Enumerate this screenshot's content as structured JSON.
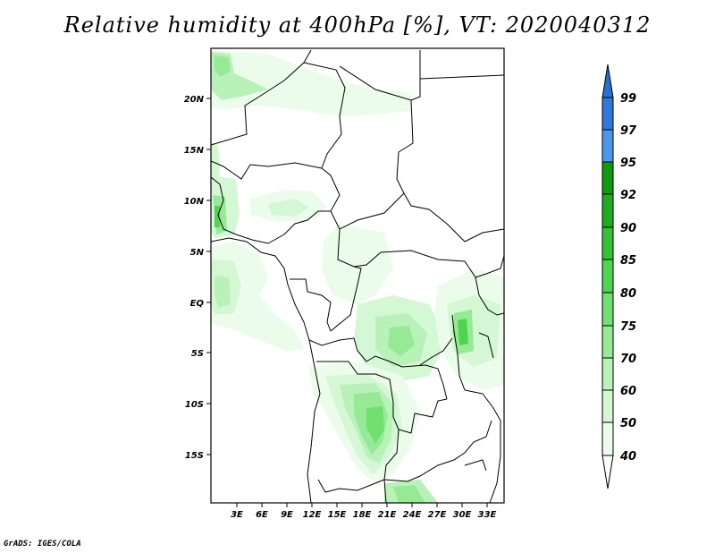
{
  "title": "Relative humidity at 400hPa [%], VT: 2020040312",
  "credit": "GrADS: IGES/COLA",
  "lat_labels": [
    "20N",
    "15N",
    "10N",
    "5N",
    "EQ",
    "5S",
    "10S",
    "15S"
  ],
  "lon_labels": [
    "3E",
    "6E",
    "9E",
    "12E",
    "15E",
    "18E",
    "21E",
    "24E",
    "27E",
    "30E",
    "33E"
  ],
  "colorbar": {
    "levels": [
      "99",
      "97",
      "95",
      "92",
      "90",
      "85",
      "80",
      "75",
      "70",
      "60",
      "50",
      "40"
    ],
    "colors": {
      "top_arrow": "#2a6fd6",
      "blue_dark": "#2f78e0",
      "blue_light": "#4a97ee",
      "green_darkest": "#109a10",
      "green_dark": "#20ac20",
      "green_mid": "#34c234",
      "green": "#4ed44e",
      "green_light": "#70e070",
      "green_lighter": "#96ea96",
      "green_pale": "#b8f2b8",
      "green_paler": "#d4f7d4",
      "green_palest": "#ebfcea",
      "bottom_arrow": "#ffffff"
    }
  }
}
